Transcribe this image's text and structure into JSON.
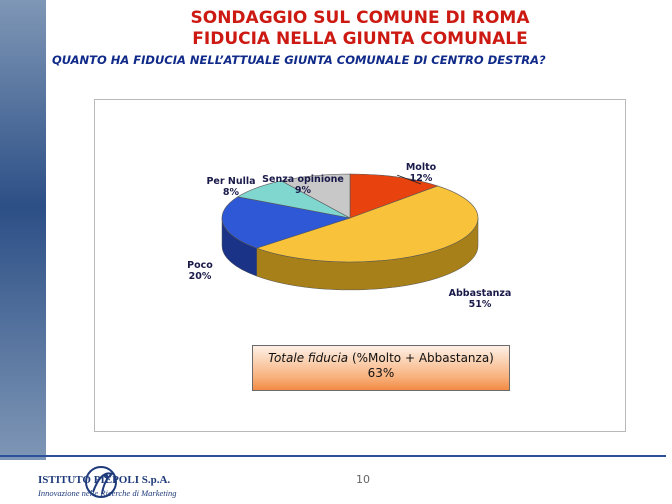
{
  "header": {
    "title_line1": "SONDAGGIO SUL COMUNE DI ROMA",
    "title_line2": "FIDUCIA NELLA GIUNTA COMUNALE",
    "question": "QUANTO HA FIDUCIA NELL’ATTUALE GIUNTA COMUNALE DI CENTRO DESTRA?"
  },
  "chart_data": {
    "type": "pie",
    "title": "",
    "slices": [
      {
        "label": "Molto",
        "value": 12,
        "display": "12%",
        "color": "#e8420f",
        "side": "#a82a08"
      },
      {
        "label": "Abbastanza",
        "value": 51,
        "display": "51%",
        "color": "#f8c23a",
        "side": "#a8801a"
      },
      {
        "label": "Poco",
        "value": 20,
        "display": "20%",
        "color": "#2f58d6",
        "side": "#1a3386"
      },
      {
        "label": "Per Nulla",
        "value": 8,
        "display": "8%",
        "color": "#7fd7d0",
        "side": "#4b9690"
      },
      {
        "label": "Senza opinione",
        "value": 9,
        "display": "9%",
        "color": "#c8c8c8",
        "side": "#8a8a8a"
      }
    ]
  },
  "summary": {
    "label_italic": "Totale fiducia",
    "label_rest": " (%Molto + Abbastanza)",
    "value": "63%"
  },
  "footer": {
    "company": "ISTITUTO PIEPOLI S.p.A.",
    "tagline": "Innovazione nelle Ricerche di Marketing",
    "page_number": "10"
  },
  "colors": {
    "title": "#cc1a12",
    "question": "#102a8a",
    "rule": "#2b4f9a"
  }
}
